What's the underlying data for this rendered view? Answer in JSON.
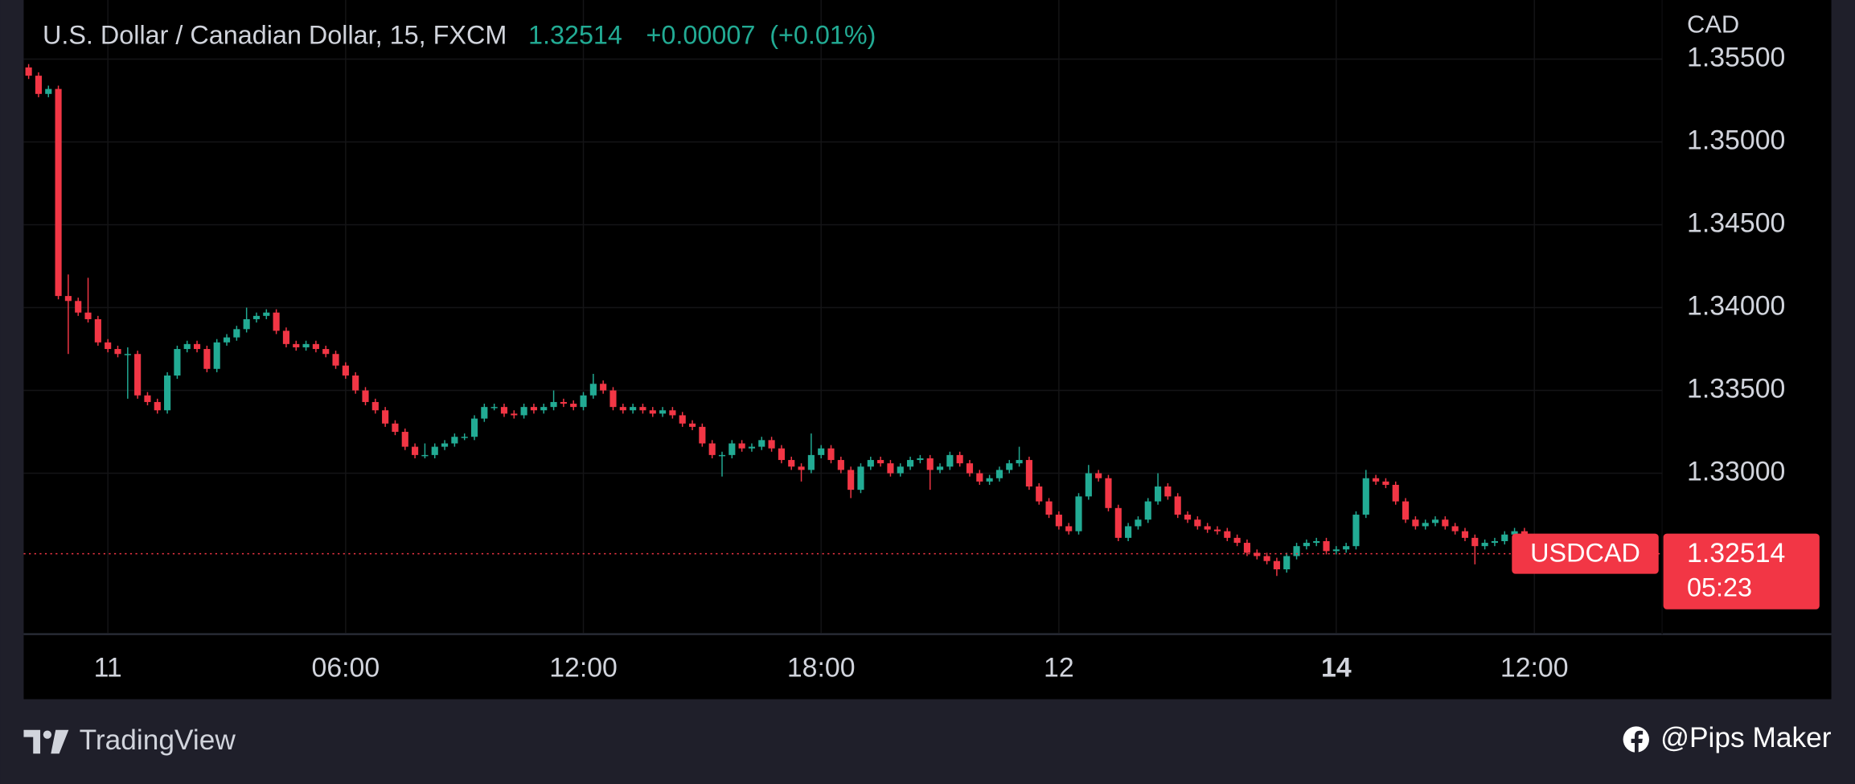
{
  "chart_data": {
    "type": "candlestick",
    "title": "U.S. Dollar / Canadian Dollar, 15, FXCM",
    "last_price": 1.32514,
    "change": {
      "value": 7e-05,
      "label": "+0.00007"
    },
    "change_percent": {
      "value": 0.01,
      "label": "(+0.01%)"
    },
    "y_axis_label": "CAD",
    "symbol": "USDCAD",
    "countdown": "05:23",
    "up_color": "#22ab94",
    "down_color": "#f23645",
    "grid": true,
    "ylim": [
      1.32036,
      1.35857
    ],
    "yticks": [
      {
        "value": 1.355,
        "label": "1.35500"
      },
      {
        "value": 1.35,
        "label": "1.35000"
      },
      {
        "value": 1.345,
        "label": "1.34500"
      },
      {
        "value": 1.34,
        "label": "1.34000"
      },
      {
        "value": 1.335,
        "label": "1.33500"
      },
      {
        "value": 1.33,
        "label": "1.33000"
      }
    ],
    "xlim": [
      -0.5,
      164.9
    ],
    "xticks": [
      {
        "value": 8,
        "label": "11"
      },
      {
        "value": 32,
        "label": "06:00"
      },
      {
        "value": 56,
        "label": "12:00"
      },
      {
        "value": 80,
        "label": "18:00"
      },
      {
        "value": 104,
        "label": "12"
      },
      {
        "value": 132,
        "label": "14"
      },
      {
        "value": 152,
        "label": "12:00"
      }
    ],
    "open": [
      1.3545,
      1.354,
      1.3529,
      1.3532,
      1.3407,
      1.3404,
      1.3397,
      1.3393,
      1.3379,
      1.3375,
      1.3372,
      1.3372,
      1.3347,
      1.3343,
      1.3338,
      1.3359,
      1.3375,
      1.3378,
      1.3375,
      1.3363,
      1.3379,
      1.3382,
      1.3387,
      1.3393,
      1.3395,
      1.3397,
      1.3386,
      1.3378,
      1.3376,
      1.3378,
      1.3375,
      1.3372,
      1.3365,
      1.3359,
      1.335,
      1.3343,
      1.3338,
      1.333,
      1.3325,
      1.3316,
      1.3311,
      1.3311,
      1.3316,
      1.3318,
      1.3322,
      1.3322,
      1.3333,
      1.334,
      1.334,
      1.3336,
      1.3335,
      1.334,
      1.3338,
      1.334,
      1.3343,
      1.3342,
      1.334,
      1.3347,
      1.3354,
      1.335,
      1.334,
      1.3338,
      1.334,
      1.3338,
      1.3336,
      1.3338,
      1.3335,
      1.333,
      1.3328,
      1.3318,
      1.3311,
      1.3311,
      1.3318,
      1.3315,
      1.3316,
      1.332,
      1.3315,
      1.3308,
      1.3304,
      1.3302,
      1.3311,
      1.3315,
      1.3308,
      1.3302,
      1.329,
      1.3304,
      1.3308,
      1.3306,
      1.33,
      1.3304,
      1.3308,
      1.3309,
      1.3302,
      1.3304,
      1.3311,
      1.3306,
      1.33,
      1.3295,
      1.3297,
      1.3302,
      1.3306,
      1.3308,
      1.3292,
      1.3283,
      1.3275,
      1.3268,
      1.3265,
      1.3286,
      1.33,
      1.3297,
      1.3279,
      1.3261,
      1.3268,
      1.3272,
      1.3283,
      1.3292,
      1.3286,
      1.3275,
      1.3272,
      1.3268,
      1.3266,
      1.3265,
      1.3261,
      1.3258,
      1.3252,
      1.325,
      1.3247,
      1.3242,
      1.325,
      1.3256,
      1.3258,
      1.3259,
      1.3253,
      1.3254,
      1.3256,
      1.3275,
      1.3297,
      1.3295,
      1.3293,
      1.3283,
      1.3272,
      1.3268,
      1.327,
      1.3272,
      1.3268,
      1.3265,
      1.3261,
      1.3256,
      1.3258,
      1.3259,
      1.3263,
      1.3265
    ],
    "high": [
      1.3547,
      1.3542,
      1.3534,
      1.3534,
      1.342,
      1.3406,
      1.3418,
      1.3395,
      1.3381,
      1.3377,
      1.3376,
      1.3374,
      1.3349,
      1.3345,
      1.3361,
      1.3377,
      1.338,
      1.338,
      1.3377,
      1.3381,
      1.3384,
      1.3389,
      1.34,
      1.3397,
      1.3399,
      1.3399,
      1.3388,
      1.338,
      1.338,
      1.338,
      1.3377,
      1.3374,
      1.3367,
      1.3361,
      1.3352,
      1.3345,
      1.334,
      1.3332,
      1.3327,
      1.3318,
      1.3318,
      1.3318,
      1.332,
      1.3324,
      1.3324,
      1.3335,
      1.3342,
      1.3342,
      1.3342,
      1.3338,
      1.3342,
      1.3342,
      1.3342,
      1.335,
      1.3345,
      1.3344,
      1.3349,
      1.336,
      1.3356,
      1.3352,
      1.3342,
      1.3342,
      1.3342,
      1.334,
      1.334,
      1.334,
      1.3337,
      1.3332,
      1.333,
      1.332,
      1.3313,
      1.332,
      1.332,
      1.3318,
      1.3322,
      1.3322,
      1.3317,
      1.331,
      1.3306,
      1.3324,
      1.3317,
      1.3317,
      1.331,
      1.3304,
      1.3306,
      1.331,
      1.331,
      1.3308,
      1.3306,
      1.331,
      1.3311,
      1.3311,
      1.3306,
      1.3313,
      1.3313,
      1.3308,
      1.3302,
      1.3299,
      1.3304,
      1.3308,
      1.3316,
      1.331,
      1.3294,
      1.3285,
      1.3277,
      1.327,
      1.3288,
      1.3305,
      1.3302,
      1.3299,
      1.3281,
      1.327,
      1.3274,
      1.3285,
      1.33,
      1.3294,
      1.3288,
      1.3277,
      1.3274,
      1.327,
      1.3268,
      1.3267,
      1.3263,
      1.326,
      1.3254,
      1.3252,
      1.3249,
      1.3252,
      1.3258,
      1.326,
      1.3261,
      1.3261,
      1.3256,
      1.3258,
      1.3277,
      1.3302,
      1.3299,
      1.3297,
      1.3295,
      1.3285,
      1.3274,
      1.3272,
      1.3274,
      1.3274,
      1.327,
      1.3267,
      1.3263,
      1.326,
      1.3261,
      1.3265,
      1.3267,
      1.3267
    ],
    "low": [
      1.3538,
      1.3527,
      1.3527,
      1.3405,
      1.3372,
      1.3395,
      1.3391,
      1.3377,
      1.3373,
      1.337,
      1.3345,
      1.3345,
      1.3341,
      1.3336,
      1.3336,
      1.3357,
      1.3373,
      1.3373,
      1.3361,
      1.3361,
      1.3377,
      1.338,
      1.3385,
      1.3391,
      1.3393,
      1.3384,
      1.3376,
      1.3374,
      1.3374,
      1.3373,
      1.337,
      1.3363,
      1.3357,
      1.3348,
      1.3341,
      1.3336,
      1.3328,
      1.3323,
      1.3314,
      1.3309,
      1.3309,
      1.3309,
      1.3314,
      1.3316,
      1.332,
      1.332,
      1.3331,
      1.3338,
      1.3334,
      1.3333,
      1.3333,
      1.3336,
      1.3336,
      1.3338,
      1.334,
      1.3338,
      1.3338,
      1.3345,
      1.3348,
      1.3338,
      1.3336,
      1.3336,
      1.3336,
      1.3334,
      1.3334,
      1.3333,
      1.3328,
      1.3326,
      1.3316,
      1.3309,
      1.3298,
      1.3309,
      1.3313,
      1.3313,
      1.3314,
      1.3313,
      1.3306,
      1.3302,
      1.3295,
      1.33,
      1.3309,
      1.3306,
      1.33,
      1.3285,
      1.3288,
      1.3302,
      1.3304,
      1.3298,
      1.3298,
      1.3302,
      1.3306,
      1.329,
      1.33,
      1.3302,
      1.3304,
      1.3298,
      1.3293,
      1.3293,
      1.3295,
      1.33,
      1.3304,
      1.329,
      1.3281,
      1.3273,
      1.3266,
      1.3263,
      1.3263,
      1.3284,
      1.3295,
      1.3277,
      1.3259,
      1.3259,
      1.3266,
      1.327,
      1.3281,
      1.3284,
      1.3273,
      1.327,
      1.3266,
      1.3264,
      1.3263,
      1.3259,
      1.3256,
      1.325,
      1.3248,
      1.3245,
      1.3238,
      1.324,
      1.3248,
      1.3254,
      1.3256,
      1.3251,
      1.3251,
      1.3252,
      1.3254,
      1.3273,
      1.3293,
      1.3291,
      1.3281,
      1.327,
      1.3266,
      1.3266,
      1.3268,
      1.3266,
      1.3263,
      1.3259,
      1.3245,
      1.3254,
      1.3256,
      1.3257,
      1.3261,
      1.325
    ],
    "close": [
      1.354,
      1.3529,
      1.3532,
      1.3407,
      1.3404,
      1.3397,
      1.3393,
      1.3379,
      1.3375,
      1.3372,
      1.3372,
      1.3347,
      1.3343,
      1.3338,
      1.3359,
      1.3375,
      1.3378,
      1.3375,
      1.3363,
      1.3379,
      1.3382,
      1.3387,
      1.3393,
      1.3395,
      1.3397,
      1.3386,
      1.3378,
      1.3376,
      1.3378,
      1.3375,
      1.3372,
      1.3365,
      1.3359,
      1.335,
      1.3343,
      1.3338,
      1.333,
      1.3325,
      1.3316,
      1.3311,
      1.3311,
      1.3316,
      1.3318,
      1.3322,
      1.3322,
      1.3333,
      1.334,
      1.334,
      1.3336,
      1.3335,
      1.334,
      1.3338,
      1.334,
      1.3343,
      1.3342,
      1.334,
      1.3347,
      1.3354,
      1.335,
      1.334,
      1.3338,
      1.334,
      1.3338,
      1.3336,
      1.3338,
      1.3335,
      1.333,
      1.3328,
      1.3318,
      1.3311,
      1.3311,
      1.3318,
      1.3315,
      1.3316,
      1.332,
      1.3315,
      1.3308,
      1.3304,
      1.3302,
      1.3311,
      1.3315,
      1.3308,
      1.3302,
      1.329,
      1.3304,
      1.3308,
      1.3306,
      1.33,
      1.3304,
      1.3308,
      1.3309,
      1.3302,
      1.3304,
      1.3311,
      1.3306,
      1.33,
      1.3295,
      1.3297,
      1.3302,
      1.3306,
      1.3308,
      1.3292,
      1.3283,
      1.3275,
      1.3268,
      1.3265,
      1.3286,
      1.33,
      1.3297,
      1.3279,
      1.3261,
      1.3268,
      1.3272,
      1.3283,
      1.3292,
      1.3286,
      1.3275,
      1.3272,
      1.3268,
      1.3266,
      1.3265,
      1.3261,
      1.3258,
      1.3252,
      1.325,
      1.3247,
      1.3242,
      1.325,
      1.3256,
      1.3258,
      1.3259,
      1.3253,
      1.3254,
      1.3256,
      1.3275,
      1.3297,
      1.3295,
      1.3293,
      1.3283,
      1.3272,
      1.3268,
      1.327,
      1.3272,
      1.3268,
      1.3265,
      1.3261,
      1.3256,
      1.3258,
      1.3259,
      1.3263,
      1.3265,
      1.32514
    ]
  },
  "footer": {
    "brand": "TradingView",
    "credit": "@Pips Maker"
  }
}
